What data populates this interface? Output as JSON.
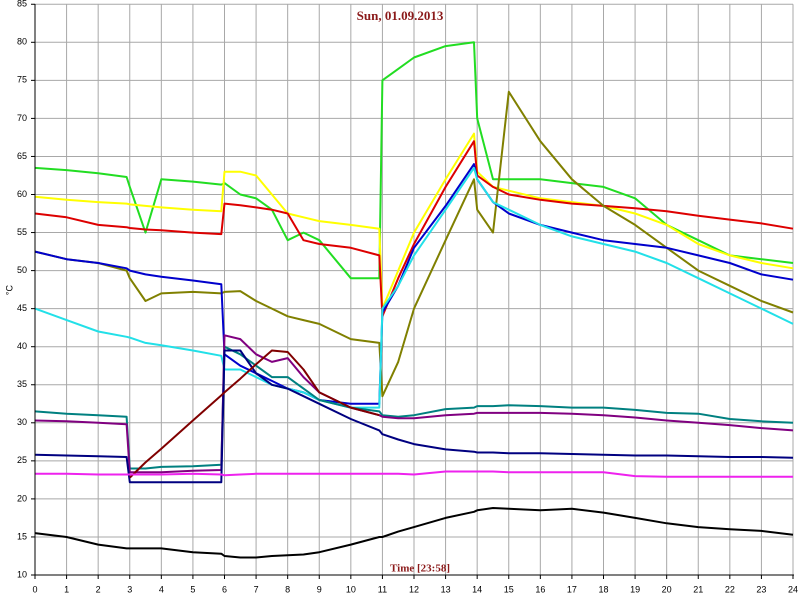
{
  "chart_data": {
    "type": "line",
    "title": "Sun, 01.09.2013",
    "x_label": "Time [23:58]",
    "y_label": "°C",
    "x": [
      0,
      1,
      2,
      2.9,
      3,
      3.5,
      4,
      5,
      5.9,
      6,
      6.5,
      7,
      7.5,
      8,
      8.5,
      9,
      10,
      10.9,
      11,
      11.5,
      12,
      13,
      13.9,
      14,
      14.5,
      15,
      16,
      17,
      18,
      19,
      20,
      21,
      22,
      23,
      24
    ],
    "series": [
      {
        "color": "#22dd22",
        "values": [
          63.5,
          63.2,
          62.8,
          62.3,
          61,
          55,
          62,
          61.7,
          61.3,
          61.5,
          60,
          59.5,
          58,
          54,
          55,
          54,
          49,
          49,
          75,
          76.5,
          78,
          79.5,
          80,
          70,
          62,
          62,
          62,
          61.5,
          61,
          59.5,
          56,
          54,
          52,
          51.5,
          51
        ]
      },
      {
        "color": "#ffff00",
        "values": [
          59.7,
          59.3,
          59,
          58.8,
          58.7,
          58.5,
          58.3,
          58,
          57.8,
          63,
          63,
          62.5,
          60,
          57.5,
          57,
          56.5,
          56,
          55.5,
          45,
          50,
          55,
          62,
          68,
          63,
          61,
          60.5,
          59.5,
          59,
          58.5,
          57.5,
          56,
          53.5,
          52,
          51,
          50.3
        ]
      },
      {
        "color": "#dd0000",
        "values": [
          57.5,
          57,
          56,
          55.7,
          55.6,
          55.4,
          55.3,
          55,
          54.8,
          58.8,
          58.6,
          58.3,
          58,
          57.5,
          54,
          53.5,
          53,
          52,
          44,
          49,
          53.5,
          61,
          67,
          62.5,
          61,
          60,
          59.3,
          58.8,
          58.5,
          58.2,
          57.8,
          57.2,
          56.7,
          56.2,
          55.5
        ]
      },
      {
        "color": "#808000",
        "values": [
          52.5,
          51.5,
          51,
          50,
          49,
          46,
          47,
          47.2,
          47,
          47.2,
          47.3,
          46,
          45,
          44,
          43.5,
          43,
          41,
          40.5,
          33.5,
          38,
          45,
          54,
          62,
          58,
          55,
          73.5,
          67,
          62,
          58.5,
          56,
          53,
          50,
          48,
          46,
          44.5
        ]
      },
      {
        "color": "#0000cc",
        "values": [
          52.5,
          51.5,
          51,
          50.3,
          50,
          49.5,
          49.2,
          48.7,
          48.2,
          39,
          37.5,
          36.5,
          35.5,
          34.5,
          34,
          33,
          32.5,
          32.5,
          44.5,
          48,
          53,
          58.5,
          64,
          62,
          59,
          57.5,
          56,
          55,
          54,
          53.5,
          53,
          52,
          51,
          49.5,
          48.8
        ]
      },
      {
        "color": "#22e0e8",
        "values": [
          45,
          43.5,
          42,
          41.3,
          41.2,
          40.5,
          40.2,
          39.5,
          38.8,
          37,
          37,
          36,
          35,
          34.5,
          34,
          33,
          32,
          32,
          45,
          48,
          52,
          58,
          63.5,
          62,
          59,
          58,
          56,
          54.5,
          53.5,
          52.5,
          51,
          49,
          47,
          45,
          43
        ]
      },
      {
        "color": "#008080",
        "values": [
          31.5,
          31.2,
          31,
          30.8,
          24,
          24,
          24.2,
          24.3,
          24.5,
          40,
          39,
          37.5,
          36,
          36,
          34.5,
          33,
          32,
          31.5,
          31,
          30.8,
          31,
          31.8,
          32,
          32.2,
          32.2,
          32.3,
          32.2,
          32,
          32,
          31.7,
          31.3,
          31.2,
          30.5,
          30.2,
          30
        ]
      },
      {
        "color": "#800080",
        "values": [
          30.3,
          30.2,
          30,
          29.8,
          23.5,
          23.5,
          23.5,
          23.7,
          23.8,
          41.5,
          41,
          39,
          38,
          38.5,
          36,
          34,
          32,
          31,
          30.8,
          30.6,
          30.6,
          31,
          31.2,
          31.3,
          31.3,
          31.3,
          31.3,
          31.2,
          31,
          30.7,
          30.3,
          30,
          29.7,
          29.3,
          29
        ]
      },
      {
        "color": "#000080",
        "values": [
          25.8,
          25.7,
          25.6,
          25.5,
          22.2,
          22.2,
          22.2,
          22.2,
          22.2,
          39.5,
          39.5,
          36.5,
          35,
          34.5,
          33.5,
          32.5,
          30.5,
          29,
          28.5,
          27.8,
          27.2,
          26.5,
          26.2,
          26.1,
          26.1,
          26,
          26,
          25.9,
          25.8,
          25.7,
          25.7,
          25.6,
          25.5,
          25.5,
          25.4
        ]
      },
      {
        "color": "#800000",
        "values": [
          null,
          null,
          null,
          null,
          22.8,
          24.8,
          26.6,
          30.3,
          33.6,
          34,
          35.8,
          37.7,
          39.5,
          39.3,
          37,
          34,
          32,
          31,
          null,
          null,
          null,
          null,
          null,
          null,
          null,
          null,
          null,
          null,
          null,
          null,
          null,
          null,
          null,
          null,
          null
        ]
      },
      {
        "color": "#ee22ee",
        "values": [
          23.3,
          23.3,
          23.2,
          23.2,
          23.2,
          23.2,
          23.2,
          23.3,
          23.2,
          23.1,
          23.2,
          23.3,
          23.3,
          23.3,
          23.3,
          23.3,
          23.3,
          23.3,
          23.3,
          23.3,
          23.2,
          23.6,
          23.6,
          23.6,
          23.6,
          23.5,
          23.5,
          23.5,
          23.5,
          23,
          22.9,
          22.9,
          22.9,
          22.9,
          22.9
        ]
      },
      {
        "color": "#000000",
        "values": [
          15.5,
          15,
          14,
          13.5,
          13.5,
          13.5,
          13.5,
          13,
          12.8,
          12.5,
          12.3,
          12.3,
          12.5,
          12.6,
          12.7,
          13,
          14,
          15,
          15,
          15.7,
          16.3,
          17.5,
          18.3,
          18.5,
          18.8,
          18.7,
          18.5,
          18.7,
          18.2,
          17.5,
          16.8,
          16.3,
          16,
          15.8,
          15.3
        ]
      }
    ],
    "xlim": [
      0,
      24
    ],
    "ylim": [
      10,
      85
    ],
    "xticks": [
      0,
      1,
      2,
      3,
      4,
      5,
      6,
      7,
      8,
      9,
      10,
      11,
      12,
      13,
      14,
      15,
      16,
      17,
      18,
      19,
      20,
      21,
      22,
      23,
      24
    ],
    "yticks": [
      10,
      15,
      20,
      25,
      30,
      35,
      40,
      45,
      50,
      55,
      60,
      65,
      70,
      75,
      80,
      85
    ],
    "grid": true
  }
}
